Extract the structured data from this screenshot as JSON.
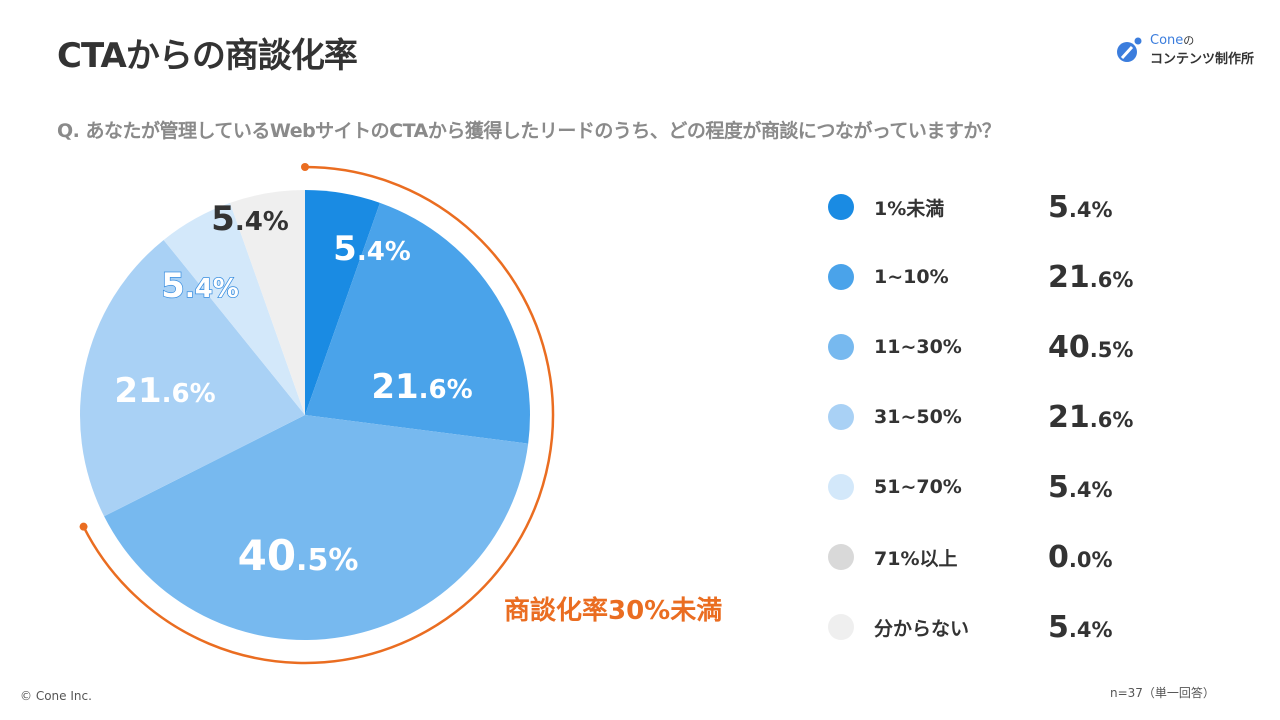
{
  "title": "CTAからの商談化率",
  "question": "Q. あなたが管理しているWebサイトのCTAから獲得したリードのうち、どの程度が商談につながっていますか？",
  "logo": {
    "line1": "Cone",
    "line1_suffix": "の",
    "line2": "コンテンツ制作所"
  },
  "chart_data": {
    "type": "pie",
    "title": "CTAからの商談化率",
    "categories": [
      "1%未満",
      "1~10%",
      "11~30%",
      "31~50%",
      "51~70%",
      "71%以上",
      "分からない"
    ],
    "values": [
      5.4,
      21.6,
      40.5,
      21.6,
      5.4,
      0.0,
      5.4
    ],
    "colors": [
      "#1a8be3",
      "#4aa3ea",
      "#77b9ef",
      "#a9d1f5",
      "#d3e8fa",
      "#d9d9d9",
      "#efefef"
    ],
    "label_colors": [
      "#ffffff",
      "#ffffff",
      "#ffffff",
      "#ffffff",
      "#ffffff",
      "#333333",
      "#333333"
    ],
    "value_int": [
      "5",
      "21",
      "40",
      "21",
      "5",
      "0",
      "5"
    ],
    "value_dec": [
      ".4%",
      ".6%",
      ".5%",
      ".6%",
      ".4%",
      ".0%",
      ".4%"
    ],
    "labels": [
      "5.4%",
      "21.6%",
      "40.5%",
      "21.6%",
      "5.4%",
      "0.0%",
      "5.4%"
    ],
    "legend": "right",
    "annotation": {
      "text": "商談化率30%未満",
      "covers_first_n": 3,
      "color": "#ea6d21"
    }
  },
  "footer": {
    "copyright": "© Cone Inc.",
    "sample": "n=37（単一回答）"
  }
}
